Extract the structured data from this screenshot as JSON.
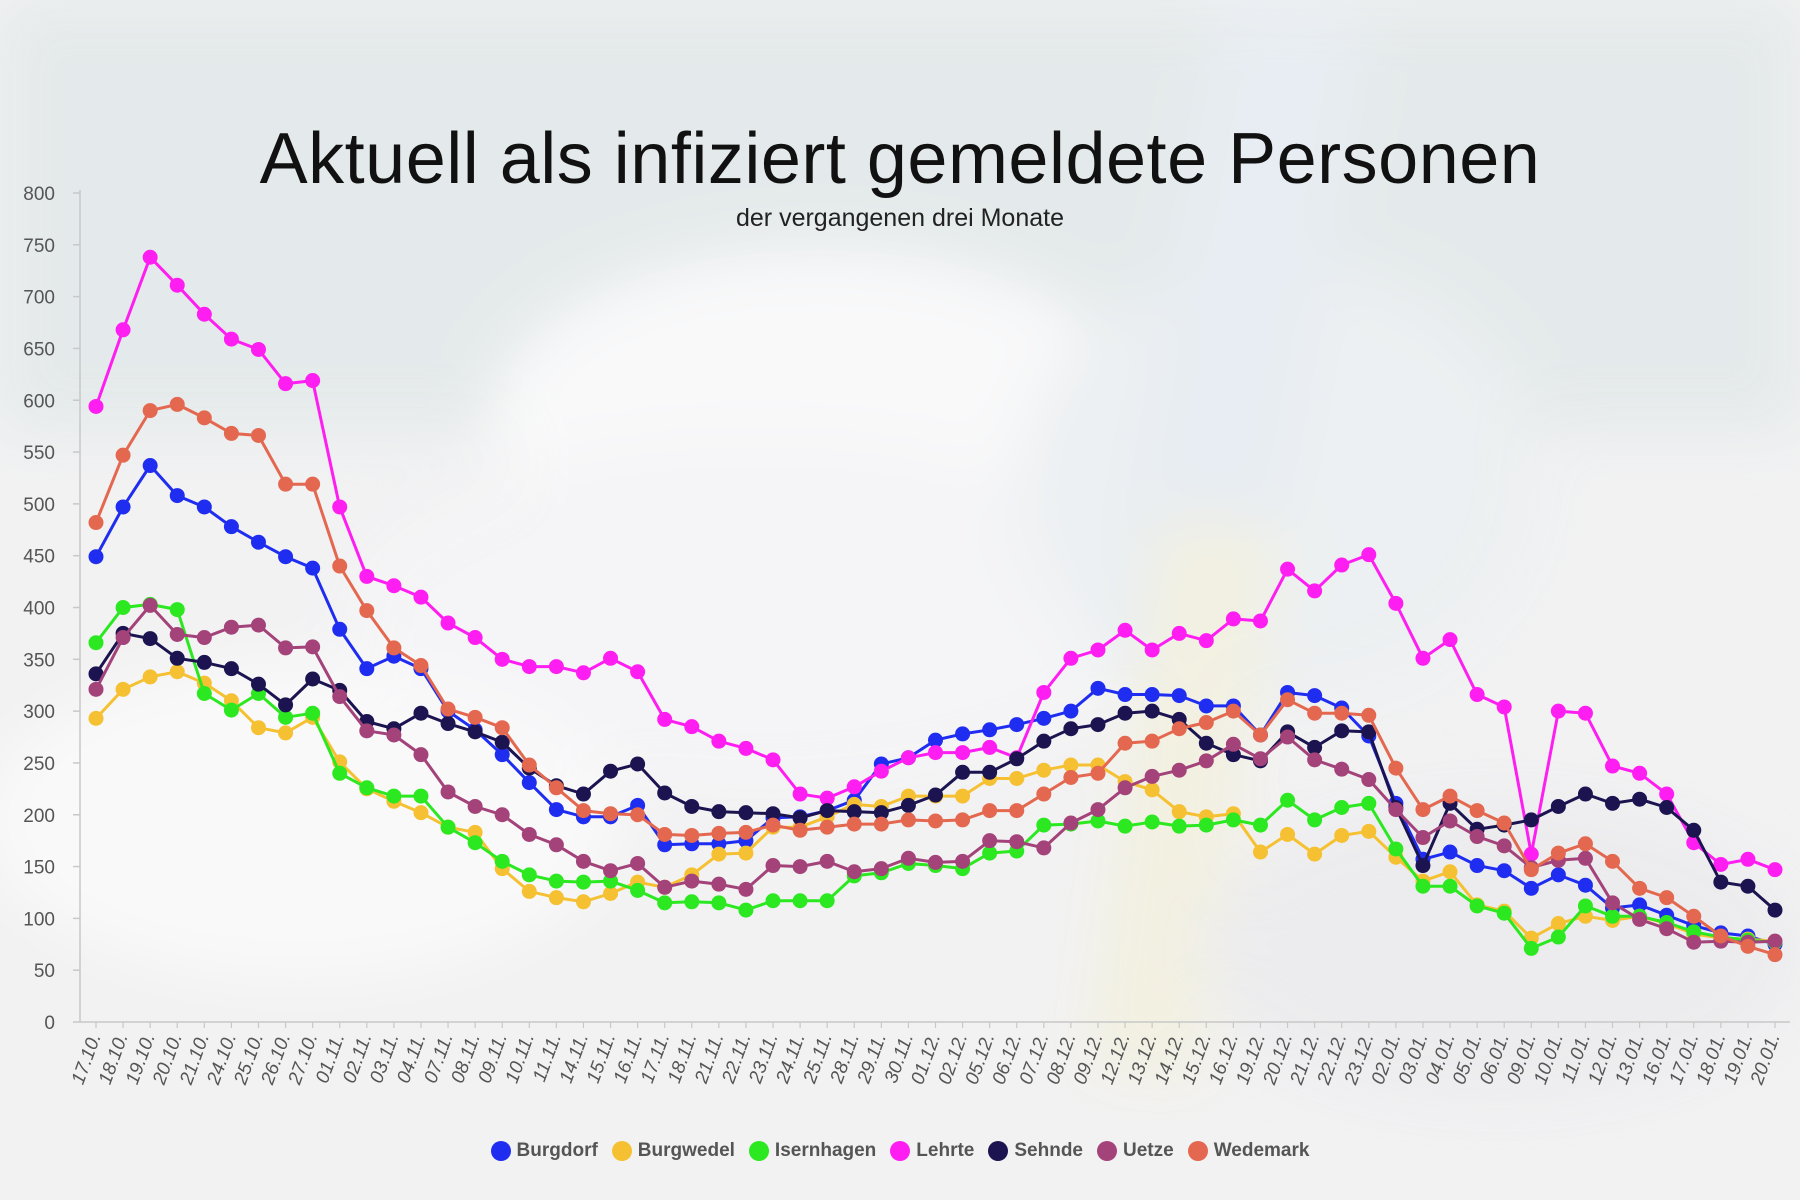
{
  "chart_data": {
    "type": "line",
    "title": "Aktuell als infiziert gemeldete Personen",
    "subtitle": "der vergangenen drei Monate",
    "ylim": [
      0,
      800
    ],
    "yticks": [
      0,
      50,
      100,
      150,
      200,
      250,
      300,
      350,
      400,
      450,
      500,
      550,
      600,
      650,
      700,
      750,
      800
    ],
    "grid": false,
    "legend_position": "bottom",
    "x": [
      "17.10.",
      "18.10.",
      "19.10.",
      "20.10.",
      "21.10.",
      "24.10.",
      "25.10.",
      "26.10.",
      "27.10.",
      "01.11.",
      "02.11.",
      "03.11.",
      "04.11.",
      "07.11.",
      "08.11.",
      "09.11.",
      "10.11.",
      "11.11.",
      "14.11.",
      "15.11.",
      "16.11.",
      "17.11.",
      "18.11.",
      "21.11.",
      "22.11.",
      "23.11.",
      "24.11.",
      "25.11.",
      "28.11.",
      "29.11.",
      "30.11.",
      "01.12.",
      "02.12.",
      "05.12.",
      "06.12.",
      "07.12.",
      "08.12.",
      "09.12.",
      "12.12.",
      "13.12.",
      "14.12.",
      "15.12.",
      "16.12.",
      "19.12.",
      "20.12.",
      "21.12.",
      "22.12.",
      "23.12.",
      "02.01.",
      "03.01.",
      "04.01.",
      "05.01.",
      "06.01.",
      "09.01.",
      "10.01.",
      "11.01.",
      "12.01.",
      "13.01.",
      "16.01.",
      "17.01.",
      "18.01.",
      "19.01.",
      "20.01."
    ],
    "series": [
      {
        "name": "Burgdorf",
        "color": "#1f2df0",
        "values": [
          449,
          497,
          537,
          508,
          497,
          478,
          463,
          449,
          438,
          379,
          341,
          353,
          341,
          300,
          282,
          258,
          231,
          205,
          198,
          198,
          209,
          171,
          172,
          172,
          175,
          197,
          198,
          204,
          214,
          249,
          255,
          272,
          278,
          282,
          287,
          293,
          300,
          322,
          316,
          316,
          315,
          305,
          305,
          277,
          318,
          315,
          303,
          276,
          211,
          157,
          164,
          151,
          146,
          129,
          142,
          132,
          110,
          113,
          103,
          93,
          86,
          83,
          75
        ]
      },
      {
        "name": "Burgwedel",
        "color": "#f5c132",
        "values": [
          293,
          321,
          333,
          338,
          327,
          310,
          284,
          279,
          294,
          251,
          225,
          213,
          202,
          188,
          183,
          148,
          126,
          120,
          116,
          124,
          135,
          130,
          142,
          162,
          163,
          188,
          188,
          198,
          210,
          208,
          218,
          218,
          218,
          235,
          235,
          243,
          248,
          248,
          232,
          224,
          203,
          198,
          201,
          164,
          181,
          162,
          180,
          184,
          159,
          136,
          145,
          113,
          107,
          81,
          95,
          102,
          98,
          102,
          95,
          85,
          81,
          80,
          78
        ]
      },
      {
        "name": "Isernhagen",
        "color": "#2ce820",
        "values": [
          366,
          400,
          403,
          398,
          317,
          301,
          317,
          294,
          298,
          240,
          226,
          218,
          218,
          188,
          173,
          155,
          142,
          136,
          135,
          136,
          127,
          115,
          116,
          115,
          108,
          117,
          117,
          117,
          141,
          144,
          153,
          151,
          148,
          163,
          165,
          190,
          191,
          194,
          189,
          193,
          189,
          190,
          195,
          190,
          214,
          195,
          207,
          211,
          167,
          131,
          131,
          112,
          105,
          71,
          82,
          112,
          102,
          102,
          96,
          87,
          82,
          79,
          77
        ]
      },
      {
        "name": "Lehrte",
        "color": "#ff1ef1",
        "values": [
          594,
          668,
          738,
          711,
          683,
          659,
          649,
          616,
          619,
          497,
          430,
          421,
          410,
          385,
          371,
          350,
          343,
          343,
          337,
          351,
          338,
          292,
          285,
          271,
          264,
          253,
          220,
          216,
          227,
          242,
          255,
          260,
          260,
          265,
          255,
          318,
          351,
          359,
          378,
          359,
          375,
          368,
          389,
          387,
          437,
          416,
          441,
          451,
          404,
          351,
          369,
          316,
          304,
          162,
          300,
          298,
          247,
          240,
          220,
          173,
          152,
          157,
          147
        ]
      },
      {
        "name": "Sehnde",
        "color": "#1c1450",
        "values": [
          336,
          375,
          370,
          351,
          347,
          341,
          326,
          306,
          331,
          320,
          290,
          283,
          298,
          288,
          280,
          270,
          245,
          228,
          220,
          242,
          249,
          221,
          208,
          203,
          202,
          201,
          197,
          204,
          203,
          202,
          209,
          219,
          241,
          241,
          254,
          271,
          283,
          287,
          298,
          300,
          292,
          269,
          258,
          252,
          280,
          265,
          281,
          280,
          207,
          151,
          211,
          186,
          190,
          195,
          208,
          220,
          211,
          215,
          207,
          185,
          135,
          131,
          108
        ]
      },
      {
        "name": "Uetze",
        "color": "#a3437a",
        "values": [
          321,
          371,
          402,
          374,
          371,
          381,
          383,
          361,
          362,
          314,
          281,
          277,
          258,
          222,
          208,
          200,
          181,
          171,
          155,
          146,
          153,
          130,
          136,
          133,
          128,
          151,
          150,
          155,
          145,
          148,
          158,
          154,
          155,
          175,
          174,
          168,
          192,
          205,
          226,
          237,
          243,
          252,
          268,
          254,
          275,
          253,
          244,
          234,
          205,
          178,
          194,
          179,
          170,
          149,
          156,
          158,
          115,
          99,
          90,
          77,
          78,
          77,
          78
        ]
      },
      {
        "name": "Wedemark",
        "color": "#e3684f",
        "values": [
          482,
          547,
          590,
          596,
          583,
          568,
          566,
          519,
          519,
          440,
          397,
          361,
          344,
          302,
          294,
          284,
          248,
          226,
          204,
          201,
          200,
          181,
          180,
          182,
          183,
          190,
          185,
          188,
          191,
          191,
          195,
          194,
          195,
          204,
          204,
          220,
          236,
          240,
          269,
          271,
          283,
          289,
          300,
          277,
          311,
          298,
          298,
          296,
          245,
          205,
          218,
          204,
          192,
          147,
          163,
          172,
          155,
          129,
          120,
          102,
          83,
          73,
          65
        ]
      }
    ]
  }
}
